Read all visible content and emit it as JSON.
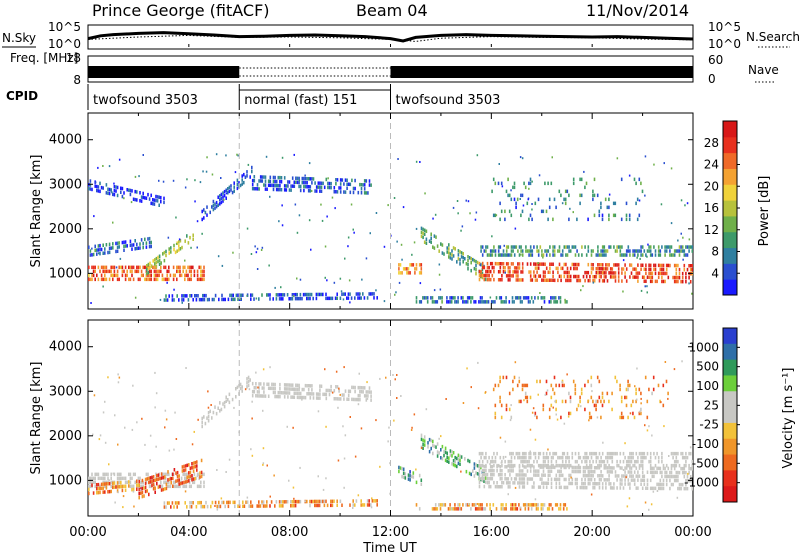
{
  "header": {
    "station": "Prince George (fitACF)",
    "beam": "Beam 04",
    "date": "11/Nov/2014"
  },
  "chart_data": [
    {
      "type": "line",
      "panel": "noise",
      "ylabel_left": "N.Sky",
      "ylabel_right": "N.Search",
      "yticks_left": [
        "10^5",
        "10^0"
      ],
      "yticks_right": [
        "10^5",
        "10^0"
      ],
      "ylim_exponent": [
        0,
        5
      ],
      "series": [
        {
          "key": "sky",
          "style": "solid",
          "x": [
            0,
            0.5,
            1,
            2,
            3,
            4,
            5,
            6,
            7,
            8,
            9,
            10,
            11,
            12,
            12.5,
            13,
            14,
            15,
            16,
            17,
            18,
            19,
            20,
            21,
            22,
            23,
            24
          ],
          "y": [
            2.1,
            2.8,
            3.1,
            3.4,
            3.6,
            3.3,
            3.0,
            2.6,
            2.7,
            2.9,
            3.0,
            2.8,
            2.6,
            2.1,
            1.5,
            2.4,
            2.9,
            3.1,
            2.9,
            2.8,
            2.7,
            2.6,
            2.5,
            2.6,
            2.4,
            2.2,
            2.0
          ]
        },
        {
          "key": "search",
          "style": "dotted",
          "x": [
            0,
            2,
            4,
            6,
            8,
            10,
            12,
            13,
            14,
            16,
            18,
            20,
            22,
            24
          ],
          "y": [
            1.9,
            2.5,
            2.9,
            2.4,
            2.5,
            2.3,
            1.9,
            1.4,
            2.2,
            2.6,
            2.4,
            2.3,
            2.0,
            1.8
          ]
        }
      ]
    },
    {
      "type": "line",
      "panel": "frequency",
      "ylabel_left": "Freq. [MHz]",
      "ylabel_right": "Nave",
      "yticks_left": [
        "18",
        "8"
      ],
      "yticks_right": [
        "60",
        "0"
      ],
      "ylim": [
        8,
        18
      ],
      "y2lim": [
        0,
        60
      ],
      "segments": [
        {
          "x": [
            0,
            6
          ],
          "style": "filled"
        },
        {
          "x": [
            6,
            12
          ],
          "style": "dotted"
        },
        {
          "x": [
            12,
            24
          ],
          "style": "filled"
        }
      ]
    },
    {
      "type": "table",
      "panel": "cpid",
      "label": "CPID",
      "modes": [
        {
          "start": 0,
          "end": 6,
          "name": "twofsound 3503"
        },
        {
          "start": 6,
          "end": 12,
          "name": "normal (fast) 151"
        },
        {
          "start": 12,
          "end": 24,
          "name": "twofsound 3503"
        }
      ]
    },
    {
      "type": "heatmap",
      "panel": "power",
      "ylabel": "Slant Range [km]",
      "xlim": [
        0,
        24
      ],
      "ylim": [
        200,
        4600
      ],
      "yticks": [
        1000,
        2000,
        3000,
        4000
      ],
      "colorbar": {
        "label": "Power [dB]",
        "ticks": [
          4,
          8,
          12,
          16,
          20,
          24,
          28
        ],
        "range": [
          0,
          32
        ],
        "colors": [
          "#1a1aff",
          "#2a4fd0",
          "#2f7fa0",
          "#3d9a6a",
          "#6fb04a",
          "#b7c23c",
          "#f0d23a",
          "#f4a232",
          "#f06a28",
          "#e8301e",
          "#d81818"
        ]
      },
      "regions": [
        {
          "kind": "band",
          "x": [
            0,
            4.6
          ],
          "center": [
            1000,
            1000
          ],
          "width": 350,
          "level": 0.78
        },
        {
          "kind": "band",
          "x": [
            2.3,
            4.2
          ],
          "center": [
            1100,
            1900
          ],
          "width": 220,
          "level": 0.45
        },
        {
          "kind": "band",
          "x": [
            4.5,
            6.5
          ],
          "center": [
            2300,
            3300
          ],
          "width": 260,
          "level": 0.12
        },
        {
          "kind": "band",
          "x": [
            6.5,
            11.2
          ],
          "center": [
            3050,
            2950
          ],
          "width": 320,
          "level": 0.15
        },
        {
          "kind": "band",
          "x": [
            0,
            2.5
          ],
          "center": [
            1500,
            1700
          ],
          "width": 250,
          "level": 0.2
        },
        {
          "kind": "band",
          "x": [
            0,
            3
          ],
          "center": [
            3000,
            2600
          ],
          "width": 240,
          "level": 0.1
        },
        {
          "kind": "band",
          "x": [
            3,
            11.5
          ],
          "center": [
            450,
            500
          ],
          "width": 160,
          "level": 0.12
        },
        {
          "kind": "band",
          "x": [
            12.3,
            13.2
          ],
          "center": [
            1100,
            1100
          ],
          "width": 260,
          "level": 0.72
        },
        {
          "kind": "band",
          "x": [
            13.2,
            15.8
          ],
          "center": [
            1900,
            1000
          ],
          "width": 300,
          "level": 0.35
        },
        {
          "kind": "band",
          "x": [
            15.5,
            24
          ],
          "center": [
            1050,
            1000
          ],
          "width": 420,
          "level": 0.82
        },
        {
          "kind": "band",
          "x": [
            15.5,
            24
          ],
          "center": [
            1500,
            1500
          ],
          "width": 260,
          "level": 0.3
        },
        {
          "kind": "band",
          "x": [
            13,
            19
          ],
          "center": [
            420,
            420
          ],
          "width": 140,
          "level": 0.2
        },
        {
          "kind": "sparse",
          "x": [
            16,
            22
          ],
          "center": [
            2700,
            2700
          ],
          "width": 900,
          "level": 0.25
        }
      ]
    },
    {
      "type": "heatmap",
      "panel": "velocity",
      "ylabel": "Slant Range [km]",
      "xlabel": "Time UT",
      "xlim": [
        0,
        24
      ],
      "ylim": [
        200,
        4600
      ],
      "yticks": [
        1000,
        2000,
        3000,
        4000
      ],
      "xticks": [
        "00:00",
        "04:00",
        "08:00",
        "12:00",
        "16:00",
        "20:00",
        "00:00"
      ],
      "colorbar": {
        "label": "Velocity [m s⁻¹]",
        "ticks": [
          "1000",
          "500",
          "100",
          "25",
          "-25",
          "-100",
          "-500",
          "-1000"
        ],
        "colors": [
          "#2a3fcf",
          "#2f6fa8",
          "#2f9a5a",
          "#6ccf3a",
          "#c8c8c4",
          "#c8c8c4",
          "#f2c23a",
          "#f0962a",
          "#ee6a20",
          "#e8301c",
          "#dd1a1a"
        ]
      },
      "regions": [
        {
          "kind": "band",
          "x": [
            0,
            4.6
          ],
          "center": [
            1000,
            1000
          ],
          "width": 350,
          "level": 0.55,
          "gray": true
        },
        {
          "kind": "band",
          "x": [
            2,
            4.6
          ],
          "center": [
            800,
            1300
          ],
          "width": 420,
          "level": 0.8
        },
        {
          "kind": "band",
          "x": [
            0,
            2
          ],
          "center": [
            800,
            900
          ],
          "width": 250,
          "level": 0.72
        },
        {
          "kind": "band",
          "x": [
            4.5,
            6.5
          ],
          "center": [
            2300,
            3300
          ],
          "width": 260,
          "level": 0.5,
          "gray": true
        },
        {
          "kind": "band",
          "x": [
            6.5,
            11.2
          ],
          "center": [
            3050,
            2950
          ],
          "width": 320,
          "level": 0.5,
          "gray": true
        },
        {
          "kind": "band",
          "x": [
            3,
            11.5
          ],
          "center": [
            450,
            500
          ],
          "width": 160,
          "level": 0.66
        },
        {
          "kind": "band",
          "x": [
            12.3,
            13.2
          ],
          "center": [
            1200,
            1000
          ],
          "width": 260,
          "level": 0.25
        },
        {
          "kind": "band",
          "x": [
            13.2,
            15.8
          ],
          "center": [
            1900,
            1100
          ],
          "width": 300,
          "level": 0.3
        },
        {
          "kind": "band",
          "x": [
            15.5,
            24
          ],
          "center": [
            1100,
            1050
          ],
          "width": 500,
          "level": 0.5,
          "gray": true
        },
        {
          "kind": "band",
          "x": [
            15.5,
            24
          ],
          "center": [
            1500,
            1500
          ],
          "width": 280,
          "level": 0.5,
          "gray": true
        },
        {
          "kind": "band",
          "x": [
            13,
            19
          ],
          "center": [
            420,
            420
          ],
          "width": 140,
          "level": 0.66
        },
        {
          "kind": "sparse",
          "x": [
            16,
            23
          ],
          "center": [
            2900,
            2900
          ],
          "width": 900,
          "level": 0.7
        }
      ]
    }
  ]
}
